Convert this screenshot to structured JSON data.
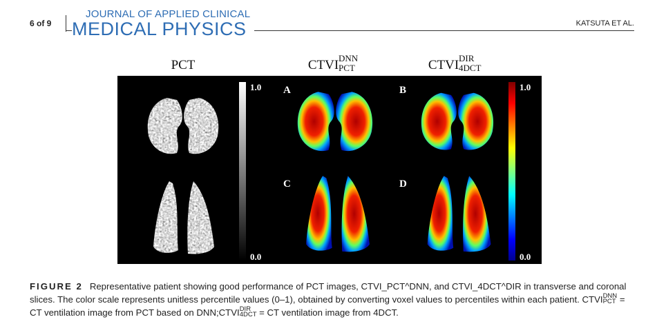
{
  "header": {
    "page": "6 of 9",
    "journal_line1": "JOURNAL OF APPLIED CLINICAL",
    "journal_line2": "MEDICAL PHYSICS",
    "author": "KATSUTA ET AL."
  },
  "figure": {
    "column_titles": [
      {
        "base": "PCT"
      },
      {
        "base": "CTVI",
        "sup": "DNN",
        "sub": "PCT"
      },
      {
        "base": "CTVI",
        "sup": "DIR",
        "sub": "4DCT"
      }
    ],
    "panel_labels": [
      "A",
      "B",
      "C",
      "D"
    ],
    "colorbars": [
      {
        "max": "1.0",
        "min": "0.0"
      },
      {
        "max": "1.0",
        "min": "0.0"
      }
    ]
  },
  "caption": {
    "label": "FIGURE 2",
    "text1": "Representative patient showing good performance of PCT images, CTVI_PCT^DNN, and CTVI_4DCT^DIR in transverse and coronal slices. The color scale represents unitless percentile values (0–1), obtained by converting voxel values to percentiles within each patient.",
    "term1": {
      "base": "CTVI",
      "sup": "DNN",
      "sub": "PCT"
    },
    "text2": "= CT ventilation image from PCT based on DNN;",
    "term2": {
      "base": "CTVI",
      "sup": "DIR",
      "sub": "4DCT"
    },
    "text3": "= CT ventilation image from 4DCT."
  }
}
